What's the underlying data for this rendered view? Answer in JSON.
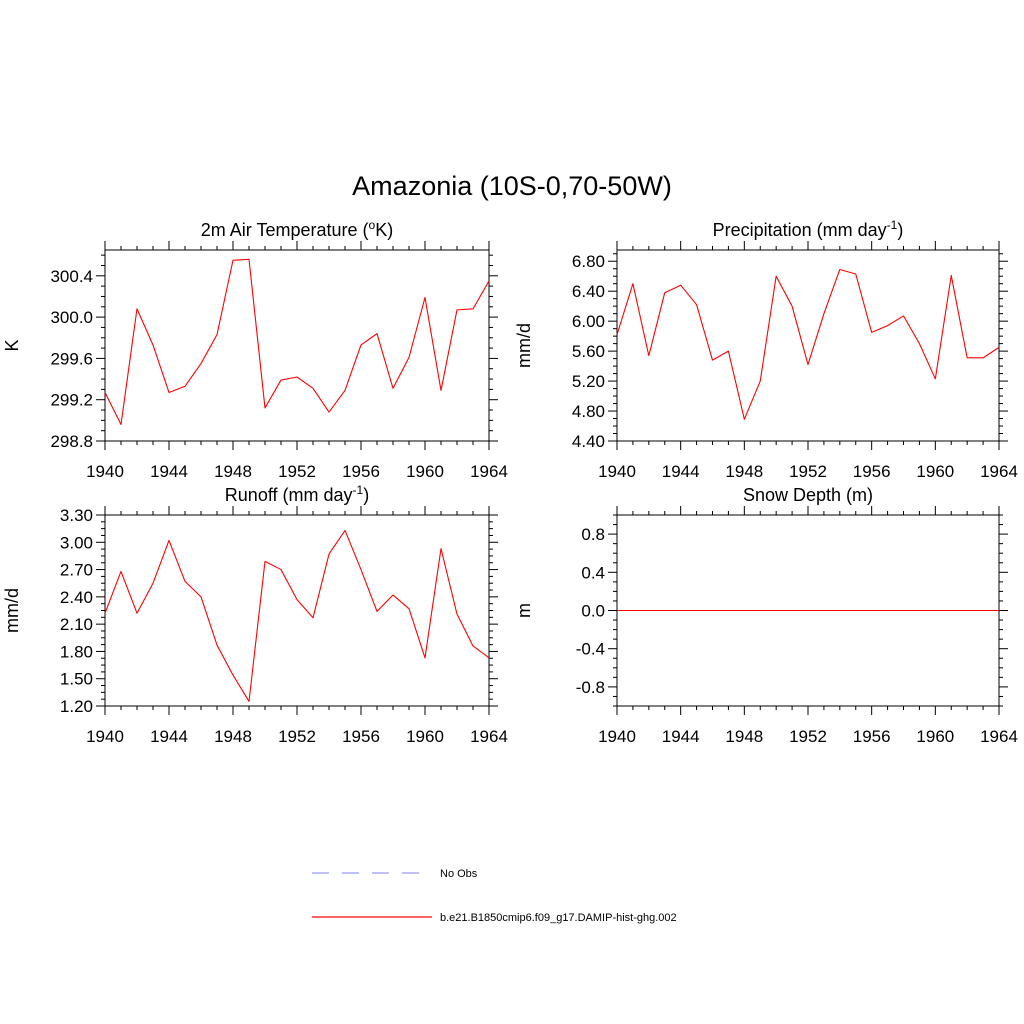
{
  "title": "Amazonia (10S-0,70-50W)",
  "legend": {
    "obs_label": "No Obs",
    "model_label": "b.e21.B1850cmip6.f09_g17.DAMIP-hist-ghg.002"
  },
  "colors": {
    "model": "#ff0000",
    "obs": "#9999ff",
    "axis": "#000000"
  },
  "chart_data": [
    {
      "type": "line",
      "title_prefix": "2m Air Temperature (",
      "title_sup": "o",
      "title_suffix": "K)",
      "ylabel": "K",
      "xlim": [
        1940,
        1964
      ],
      "ylim": [
        298.8,
        300.65
      ],
      "xticks": [
        1940,
        1944,
        1948,
        1952,
        1956,
        1960,
        1964
      ],
      "xtick_labels": [
        "1940",
        "1944",
        "1948",
        "1952",
        "1956",
        "1960",
        "1964"
      ],
      "yticks": [
        298.8,
        299.2,
        299.6,
        300.0,
        300.4
      ],
      "ytick_labels": [
        "298.8",
        "299.2",
        "299.6",
        "300.0",
        "300.4"
      ],
      "ymax_minor": 300.6,
      "x": [
        1940,
        1941,
        1942,
        1943,
        1944,
        1945,
        1946,
        1947,
        1948,
        1949,
        1950,
        1951,
        1952,
        1953,
        1954,
        1955,
        1956,
        1957,
        1958,
        1959,
        1960,
        1961,
        1962,
        1963,
        1964
      ],
      "series": [
        {
          "values": [
            299.27,
            298.96,
            300.08,
            299.73,
            299.27,
            299.33,
            299.55,
            299.83,
            300.55,
            300.56,
            299.12,
            299.39,
            299.42,
            299.31,
            299.08,
            299.29,
            299.73,
            299.84,
            299.31,
            299.61,
            300.19,
            299.29,
            300.07,
            300.08,
            300.35
          ]
        }
      ]
    },
    {
      "type": "line",
      "title_prefix": "Precipitation (mm day",
      "title_sup": "-1",
      "title_suffix": ")",
      "ylabel": "mm/d",
      "xlim": [
        1940,
        1964
      ],
      "ylim": [
        4.4,
        6.95
      ],
      "xticks": [
        1940,
        1944,
        1948,
        1952,
        1956,
        1960,
        1964
      ],
      "xtick_labels": [
        "1940",
        "1944",
        "1948",
        "1952",
        "1956",
        "1960",
        "1964"
      ],
      "yticks": [
        4.4,
        4.8,
        5.2,
        5.6,
        6.0,
        6.4,
        6.8
      ],
      "ytick_labels": [
        "4.40",
        "4.80",
        "5.20",
        "5.60",
        "6.00",
        "6.40",
        "6.80"
      ],
      "ymax_minor": 6.9,
      "x": [
        1940,
        1941,
        1942,
        1943,
        1944,
        1945,
        1946,
        1947,
        1948,
        1949,
        1950,
        1951,
        1952,
        1953,
        1954,
        1955,
        1956,
        1957,
        1958,
        1959,
        1960,
        1961,
        1962,
        1963,
        1964
      ],
      "series": [
        {
          "values": [
            5.82,
            6.5,
            5.54,
            6.38,
            6.48,
            6.22,
            5.48,
            5.6,
            4.69,
            5.2,
            6.6,
            6.2,
            5.42,
            6.1,
            6.69,
            6.63,
            5.85,
            5.94,
            6.07,
            5.7,
            5.23,
            6.61,
            5.51,
            5.51,
            5.65
          ]
        }
      ]
    },
    {
      "type": "line",
      "title_prefix": "Runoff (mm day",
      "title_sup": "-1",
      "title_suffix": ")",
      "ylabel": "mm/d",
      "xlim": [
        1940,
        1964
      ],
      "ylim": [
        1.2,
        3.3
      ],
      "xticks": [
        1940,
        1944,
        1948,
        1952,
        1956,
        1960,
        1964
      ],
      "xtick_labels": [
        "1940",
        "1944",
        "1948",
        "1952",
        "1956",
        "1960",
        "1964"
      ],
      "yticks": [
        1.2,
        1.5,
        1.8,
        2.1,
        2.4,
        2.7,
        3.0,
        3.3
      ],
      "ytick_labels": [
        "1.20",
        "1.50",
        "1.80",
        "2.10",
        "2.40",
        "2.70",
        "3.00",
        "3.30"
      ],
      "ymax_minor": 3.3,
      "x": [
        1940,
        1941,
        1942,
        1943,
        1944,
        1945,
        1946,
        1947,
        1948,
        1949,
        1950,
        1951,
        1952,
        1953,
        1954,
        1955,
        1956,
        1957,
        1958,
        1959,
        1960,
        1961,
        1962,
        1963,
        1964
      ],
      "series": [
        {
          "values": [
            2.22,
            2.68,
            2.22,
            2.55,
            3.02,
            2.57,
            2.4,
            1.87,
            1.54,
            1.25,
            2.79,
            2.7,
            2.37,
            2.17,
            2.87,
            3.13,
            2.7,
            2.24,
            2.42,
            2.27,
            1.73,
            2.93,
            2.21,
            1.86,
            1.73
          ]
        }
      ]
    },
    {
      "type": "line",
      "title_prefix": "Snow Depth (m)",
      "title_sup": "",
      "title_suffix": "",
      "ylabel": "m",
      "xlim": [
        1940,
        1964
      ],
      "ylim": [
        -1.0,
        1.0
      ],
      "xticks": [
        1940,
        1944,
        1948,
        1952,
        1956,
        1960,
        1964
      ],
      "xtick_labels": [
        "1940",
        "1944",
        "1948",
        "1952",
        "1956",
        "1960",
        "1964"
      ],
      "yticks": [
        -0.8,
        -0.4,
        0.0,
        0.4,
        0.8
      ],
      "ytick_labels": [
        "-0.8",
        "-0.4",
        "0.0",
        "0.4",
        "0.8"
      ],
      "ymax_minor": 1.0,
      "x": [
        1940,
        1964
      ],
      "series": [
        {
          "values": [
            0.0,
            0.0
          ]
        }
      ]
    }
  ]
}
